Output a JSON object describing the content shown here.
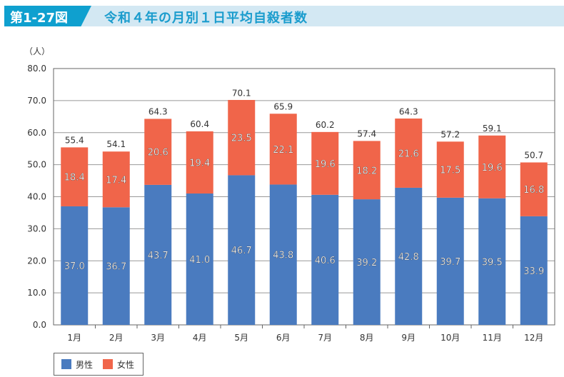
{
  "header": {
    "figure_no": "第1-27図",
    "title": "令和４年の月別１日平均自殺者数"
  },
  "colors": {
    "male": "#4a7bbf",
    "female": "#f0654a"
  },
  "chart_data": {
    "type": "bar",
    "stacked": true,
    "title": "令和４年の月別１日平均自殺者数",
    "ylabel": "（人）",
    "xlabel": "",
    "ylim": [
      0,
      80
    ],
    "yticks": [
      "0.0",
      "10.0",
      "20.0",
      "30.0",
      "40.0",
      "50.0",
      "60.0",
      "70.0",
      "80.0"
    ],
    "categories": [
      "1月",
      "2月",
      "3月",
      "4月",
      "5月",
      "6月",
      "7月",
      "8月",
      "9月",
      "10月",
      "11月",
      "12月"
    ],
    "series": [
      {
        "name": "男性",
        "values": [
          37.0,
          36.7,
          43.7,
          41.0,
          46.7,
          43.8,
          40.6,
          39.2,
          42.8,
          39.7,
          39.5,
          33.9
        ]
      },
      {
        "name": "女性",
        "values": [
          18.4,
          17.4,
          20.6,
          19.4,
          23.5,
          22.1,
          19.6,
          18.2,
          21.6,
          17.5,
          19.6,
          16.8
        ]
      }
    ],
    "totals": [
      55.4,
      54.1,
      64.3,
      60.4,
      70.1,
      65.9,
      60.2,
      57.4,
      64.3,
      57.2,
      59.1,
      50.7
    ],
    "legend": "bottom-left",
    "grid": true
  }
}
